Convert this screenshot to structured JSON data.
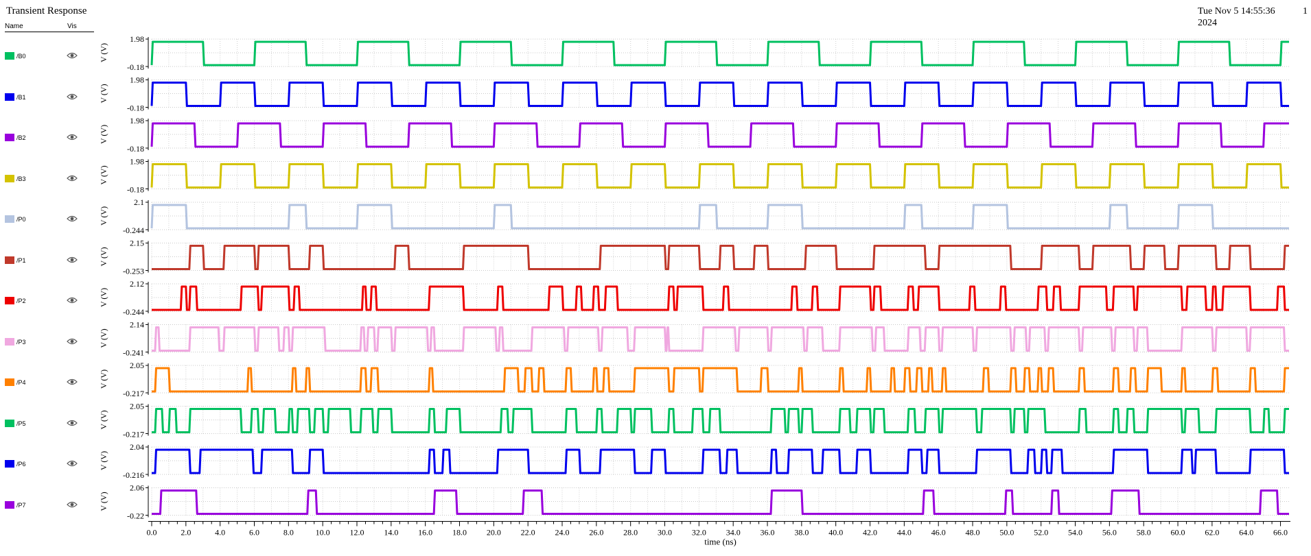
{
  "window": {
    "title": "Transient Response",
    "timestamp_line1": "Tue Nov 5 14:55:36",
    "timestamp_line2": "2024",
    "page_number": "1"
  },
  "legend_header": {
    "name": "Name",
    "vis": "Vis"
  },
  "chart_data": {
    "type": "line",
    "xlabel": "time (ns)",
    "ylabel": "V (V)",
    "xlim": [
      0,
      66.5
    ],
    "x_ticks": [
      "0.0",
      "2.0",
      "4.0",
      "6.0",
      "8.0",
      "10.0",
      "12.0",
      "14.0",
      "16.0",
      "18.0",
      "20.0",
      "22.0",
      "24.0",
      "26.0",
      "28.0",
      "30.0",
      "32.0",
      "34.0",
      "36.0",
      "38.0",
      "40.0",
      "42.0",
      "44.0",
      "46.0",
      "48.0",
      "50.0",
      "52.0",
      "54.0",
      "56.0",
      "58.0",
      "60.0",
      "62.0",
      "64.0",
      "66.0"
    ],
    "grid": true,
    "series": [
      {
        "name": "/B0",
        "color": "#00c060",
        "ymax": "1.98",
        "ymin": "-0.18",
        "high": 1.8,
        "low": 0.0,
        "transitions": [
          0,
          3,
          6,
          9,
          12,
          15,
          18,
          21,
          24,
          27,
          30,
          33,
          36,
          39,
          42,
          45,
          48,
          51,
          54,
          57,
          60,
          63,
          66
        ]
      },
      {
        "name": "/B1",
        "color": "#0000ee",
        "ymax": "1.98",
        "ymin": "-0.18",
        "high": 1.8,
        "low": 0.0,
        "transitions": [
          0,
          2,
          4,
          6,
          8,
          10,
          12,
          14,
          16,
          18,
          20,
          22,
          24,
          26,
          28,
          30,
          32,
          34,
          36,
          38,
          40,
          42,
          44,
          46,
          48,
          50,
          52,
          54,
          56,
          58,
          60,
          62,
          64,
          66
        ]
      },
      {
        "name": "/B2",
        "color": "#9900dd",
        "ymax": "1.98",
        "ymin": "-0.18",
        "high": 1.8,
        "low": 0.0,
        "transitions": [
          0,
          2.5,
          5,
          7.5,
          10,
          12.5,
          15,
          17.5,
          20,
          22.5,
          25,
          27.5,
          30,
          32.5,
          35,
          37.5,
          40,
          42.5,
          45,
          47.5,
          50,
          52.5,
          55,
          57.5,
          60,
          62.5,
          65
        ]
      },
      {
        "name": "/B3",
        "color": "#d4c300",
        "ymax": "1.98",
        "ymin": "-0.18",
        "high": 1.8,
        "low": 0.0,
        "transitions": [
          0,
          2,
          4,
          6,
          8,
          10,
          12,
          14,
          16,
          18,
          20,
          22,
          24,
          26,
          28,
          30,
          32,
          34,
          36,
          38,
          40,
          42,
          44,
          46,
          48,
          50,
          52,
          54,
          56,
          58,
          60,
          62,
          64,
          66
        ]
      },
      {
        "name": "/P0",
        "color": "#b4c4e0",
        "ymax": "2.1",
        "ymin": "-0.244",
        "high": 1.8,
        "low": 0.0,
        "transitions": [
          0,
          2,
          8,
          9,
          12,
          14,
          20,
          21,
          32,
          33,
          36,
          38,
          44,
          45,
          48,
          50,
          56,
          57,
          60,
          62
        ]
      },
      {
        "name": "/P1",
        "color": "#c0392b",
        "ymax": "2.15",
        "ymin": "-0.253",
        "high": 1.8,
        "low": 0.0,
        "transitions": [
          2.2,
          3.0,
          4.2,
          6.0,
          6.2,
          8.0,
          9.2,
          10.0,
          14.2,
          15.0,
          18.2,
          22.0,
          26.2,
          30.0,
          30.2,
          32.0,
          33.2,
          34.0,
          35.2,
          36.0,
          38.2,
          40.0,
          42.2,
          45.2,
          46.0,
          50.2,
          52.0,
          54.2,
          55.0,
          57.2,
          58.0,
          59.2,
          60.0,
          62.2,
          63.0,
          64.2,
          66.2
        ]
      },
      {
        "name": "/P2",
        "color": "#ee0000",
        "ymax": "2.12",
        "ymin": "-0.244",
        "high": 1.8,
        "low": 0.0,
        "transitions": [
          1.7,
          2.0,
          2.2,
          2.6,
          5.2,
          6.2,
          6.4,
          8.0,
          8.3,
          8.6,
          12.3,
          12.5,
          12.8,
          13.1,
          16.2,
          18.2,
          20.2,
          20.5,
          23.2,
          24.0,
          24.8,
          25.1,
          25.8,
          26.1,
          26.5,
          27.2,
          30.2,
          30.5,
          30.7,
          32.2,
          33.4,
          33.7,
          37.4,
          37.7,
          38.6,
          38.9,
          40.2,
          42.0,
          42.2,
          42.6,
          44.2,
          44.5,
          44.8,
          46.0,
          47.8,
          48.1,
          49.6,
          49.9,
          51.8,
          52.3,
          52.7,
          53.1,
          54.2,
          55.8,
          56.2,
          57.4,
          57.6,
          60.2,
          60.5,
          61.6,
          62.0,
          62.2,
          62.6,
          64.2,
          65.8,
          66.2,
          66.6
        ]
      },
      {
        "name": "/P3",
        "color": "#f0a8e0",
        "ymax": "2.14",
        "ymin": "-0.241",
        "high": 1.8,
        "low": 0.0,
        "transitions": [
          0.2,
          0.4,
          2.2,
          3.9,
          4.2,
          6.0,
          6.2,
          7.4,
          7.7,
          8.0,
          8.2,
          10.1,
          12.2,
          12.4,
          12.6,
          13.0,
          13.2,
          14.0,
          14.2,
          16.1,
          16.3,
          16.5,
          18.2,
          20.1,
          20.3,
          20.5,
          22.2,
          24.1,
          24.3,
          26.1,
          26.3,
          27.8,
          28.2,
          30.0,
          30.1,
          30.2,
          32.2,
          34.1,
          34.3,
          36.0,
          36.2,
          38.1,
          38.3,
          39.2,
          40.2,
          42.1,
          42.3,
          42.8,
          44.2,
          44.9,
          45.2,
          46.0,
          46.2,
          48.0,
          48.2,
          50.2,
          50.4,
          51.1,
          51.3,
          52.2,
          52.4,
          54.2,
          54.4,
          56.1,
          56.3,
          57.4,
          57.6,
          58.2,
          60.2,
          62.0,
          62.2,
          64.0,
          64.2,
          66.2
        ]
      },
      {
        "name": "/P4",
        "color": "#ff8000",
        "ymax": "2.05",
        "ymin": "-0.217",
        "high": 1.8,
        "low": 0.0,
        "transitions": [
          0.2,
          1.0,
          5.6,
          5.8,
          8.2,
          8.4,
          9.0,
          9.2,
          12.2,
          12.5,
          12.8,
          13.2,
          16.2,
          16.4,
          20.6,
          21.4,
          21.8,
          22.2,
          22.6,
          22.9,
          24.2,
          24.5,
          25.8,
          26.0,
          26.4,
          26.7,
          28.2,
          30.2,
          30.5,
          32.0,
          32.2,
          34.2,
          35.6,
          36.0,
          37.8,
          38.0,
          40.2,
          40.4,
          41.8,
          42.0,
          43.2,
          43.4,
          44.0,
          44.3,
          44.7,
          45.0,
          45.4,
          45.6,
          46.2,
          46.4,
          48.6,
          48.9,
          50.2,
          50.5,
          51.0,
          51.3,
          51.8,
          52.0,
          52.4,
          52.7,
          54.2,
          54.5,
          56.2,
          56.5,
          57.2,
          57.5,
          58.2,
          59.0,
          60.2,
          60.4,
          62.0,
          62.3,
          64.2,
          64.5,
          66.2
        ]
      },
      {
        "name": "/P5",
        "color": "#00c060",
        "ymax": "2.05",
        "ymin": "-0.217",
        "high": 1.8,
        "low": 0.0,
        "transitions": [
          0.2,
          0.6,
          1.0,
          1.4,
          2.2,
          5.2,
          5.8,
          6.2,
          6.5,
          7.2,
          8.0,
          8.2,
          8.5,
          9.2,
          9.5,
          10.0,
          10.3,
          11.6,
          12.2,
          12.9,
          13.2,
          14.0,
          16.2,
          16.5,
          17.2,
          18.0,
          20.4,
          20.8,
          21.1,
          22.2,
          24.2,
          24.8,
          26.0,
          26.3,
          27.2,
          28.0,
          28.2,
          29.2,
          30.2,
          30.5,
          31.6,
          32.2,
          32.6,
          33.2,
          36.2,
          37.0,
          37.2,
          37.8,
          38.0,
          38.6,
          40.2,
          40.8,
          41.2,
          42.0,
          42.2,
          42.8,
          44.2,
          44.6,
          45.2,
          46.0,
          46.2,
          48.2,
          48.5,
          50.2,
          50.4,
          51.0,
          51.2,
          52.2,
          54.2,
          54.6,
          56.2,
          56.5,
          57.0,
          57.4,
          58.2,
          60.2,
          60.4,
          61.2,
          62.2,
          64.2,
          65.0,
          65.3,
          66.2
        ]
      },
      {
        "name": "/P6",
        "color": "#0000ee",
        "ymax": "2.04",
        "ymin": "-0.216",
        "high": 1.8,
        "low": 0.0,
        "transitions": [
          0.2,
          2.2,
          2.8,
          5.9,
          6.4,
          8.2,
          9.2,
          10.0,
          16.2,
          16.5,
          17.0,
          17.4,
          20.2,
          22.0,
          24.2,
          25.0,
          26.2,
          28.2,
          29.2,
          30.0,
          32.2,
          33.2,
          33.6,
          34.2,
          36.2,
          36.5,
          37.2,
          38.6,
          39.2,
          40.2,
          41.2,
          42.0,
          44.2,
          45.0,
          45.3,
          46.0,
          48.2,
          50.2,
          51.2,
          51.6,
          52.0,
          52.3,
          52.6,
          53.2,
          56.2,
          58.2,
          60.2,
          60.8,
          61.0,
          62.2,
          64.2,
          66.2
        ]
      },
      {
        "name": "/P7",
        "color": "#9900dd",
        "ymax": "2.06",
        "ymin": "-0.22",
        "high": 1.8,
        "low": 0.0,
        "transitions": [
          0.5,
          2.6,
          9.1,
          9.6,
          16.5,
          17.8,
          21.7,
          22.8,
          36.2,
          38.0,
          45.1,
          45.7,
          49.9,
          50.3,
          52.6,
          53.0,
          56.1,
          57.7,
          64.8,
          65.8
        ]
      }
    ]
  }
}
